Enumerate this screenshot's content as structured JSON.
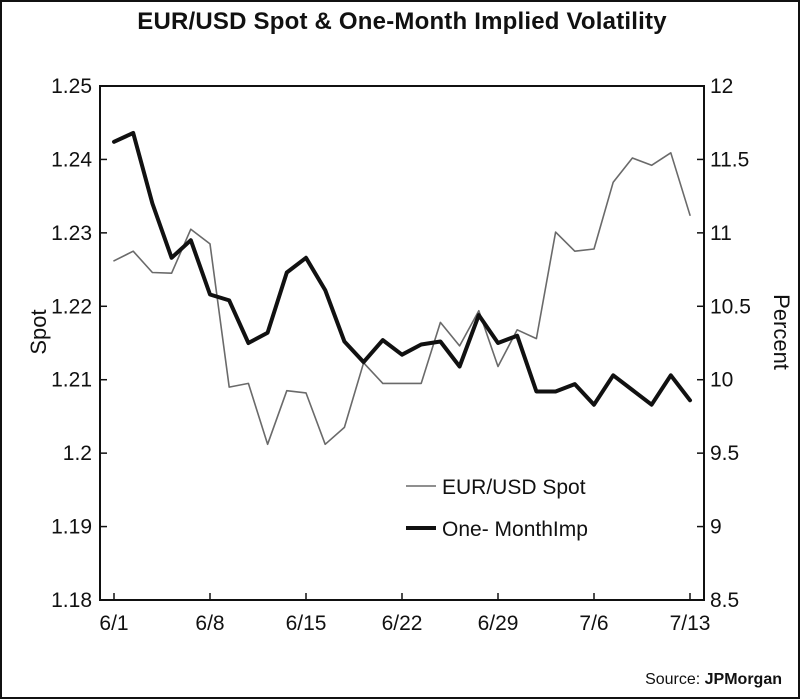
{
  "chart_data": {
    "type": "line",
    "title": "EUR/USD Spot & One-Month Implied Volatility",
    "ylabel_left": "Spot",
    "ylabel_right": "Percent",
    "ylim_left": [
      1.18,
      1.25
    ],
    "ylim_right": [
      8.5,
      12
    ],
    "yticks_left": [
      "1.25",
      "1.24",
      "1.23",
      "1.22",
      "1.21",
      "1.2",
      "1.19",
      "1.18"
    ],
    "yticks_right": [
      "12",
      "11.5",
      "11",
      "10.5",
      "10",
      "9.5",
      "9",
      "8.5"
    ],
    "xticks": [
      "6/1",
      "6/8",
      "6/15",
      "6/22",
      "6/29",
      "7/6",
      "7/13"
    ],
    "grid": false,
    "legend_position": "bottom-right",
    "series": [
      {
        "name": "EUR/USD Spot",
        "axis": "left",
        "color": "#6a6a6a",
        "values": [
          1.2262,
          1.2275,
          1.2246,
          1.2245,
          1.2305,
          1.2285,
          1.209,
          1.2095,
          1.2012,
          1.2085,
          1.2082,
          1.2012,
          1.2035,
          1.2123,
          1.2095,
          1.2095,
          1.2095,
          1.2178,
          1.2146,
          1.2194,
          1.2118,
          1.2168,
          1.2156,
          1.2301,
          1.2275,
          1.2278,
          1.2369,
          1.2402,
          1.2392,
          1.2409,
          1.2324
        ]
      },
      {
        "name": "One- MonthImp",
        "axis": "right",
        "color": "#111111",
        "values": [
          11.62,
          11.68,
          11.2,
          10.83,
          10.95,
          10.58,
          10.54,
          10.25,
          10.32,
          10.73,
          10.83,
          10.61,
          10.26,
          10.12,
          10.27,
          10.17,
          10.24,
          10.26,
          10.09,
          10.44,
          10.25,
          10.3,
          9.92,
          9.92,
          9.97,
          9.83,
          10.03,
          9.93,
          9.83,
          10.03,
          9.86
        ]
      }
    ]
  },
  "source": {
    "prefix": "Source: ",
    "name": "JPMorgan"
  }
}
